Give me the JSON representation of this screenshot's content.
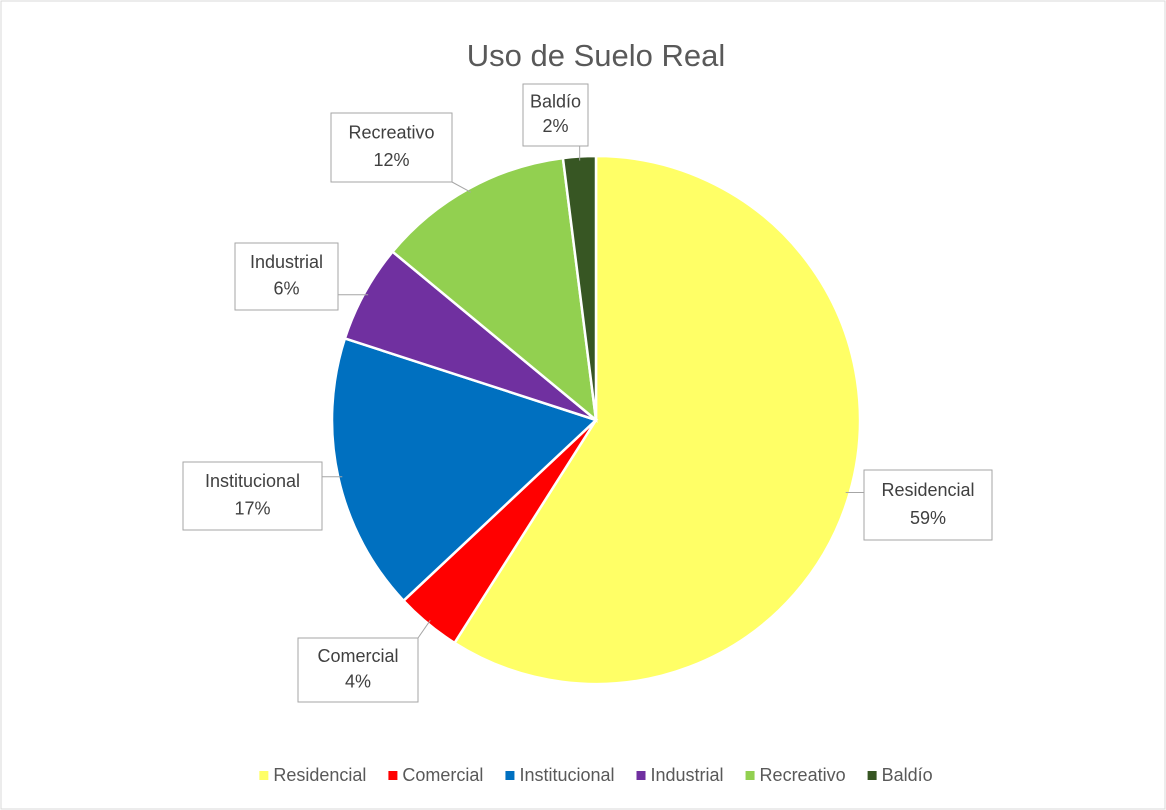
{
  "chart_data": {
    "type": "pie",
    "title": "Uso de Suelo Real",
    "categories": [
      "Residencial",
      "Comercial",
      "Institucional",
      "Industrial",
      "Recreativo",
      "Baldío"
    ],
    "values": [
      59,
      4,
      17,
      6,
      12,
      2
    ],
    "value_labels": [
      "59%",
      "4%",
      "17%",
      "6%",
      "12%",
      "2%"
    ],
    "colors": [
      "#FFFF66",
      "#FF0000",
      "#0070C0",
      "#7030A0",
      "#92D050",
      "#375623"
    ],
    "legend": "bottom"
  }
}
